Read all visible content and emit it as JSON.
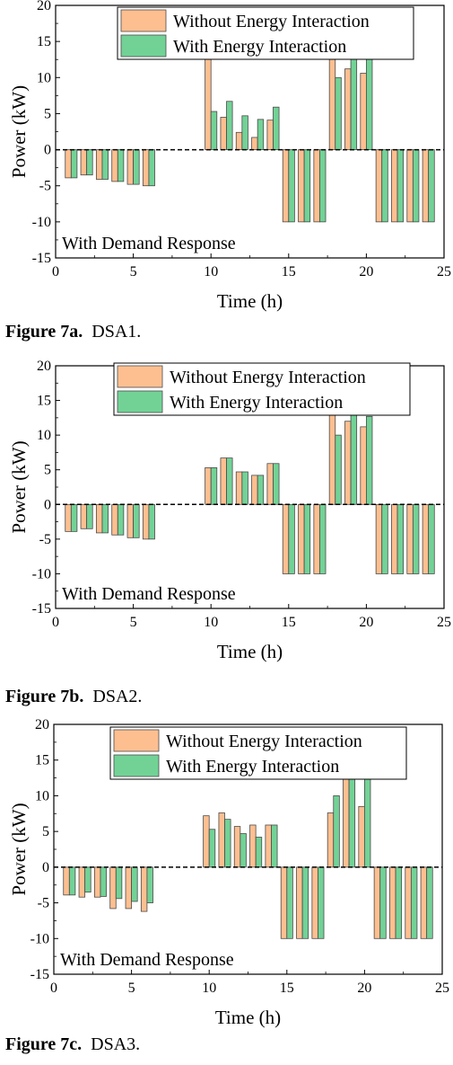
{
  "colors": {
    "without": "#FDBF90",
    "with": "#72D296",
    "bar_stroke": "#4a4a4a"
  },
  "legend": {
    "without": "Without Energy Interaction",
    "with": "With Energy Interaction"
  },
  "axis": {
    "ylabel": "Power (kW)",
    "xlabel": "Time (h)",
    "yticks": [
      "20",
      "15",
      "10",
      "5",
      "0",
      "-5",
      "-10",
      "-15"
    ],
    "xticks": [
      "0",
      "5",
      "10",
      "15",
      "20",
      "25"
    ]
  },
  "annotation": "With Demand Response",
  "chart_data": [
    {
      "type": "bar",
      "caption_label": "Figure 7a.",
      "caption_text": "DSA1.",
      "title": "",
      "xlabel": "Time (h)",
      "ylabel": "Power (kW)",
      "xlim": [
        0,
        25
      ],
      "ylim": [
        -15,
        20
      ],
      "categories": [
        "1",
        "2",
        "3",
        "4",
        "5",
        "6",
        "7",
        "8",
        "9",
        "10",
        "11",
        "12",
        "13",
        "14",
        "15",
        "16",
        "17",
        "18",
        "19",
        "20",
        "21",
        "22",
        "23",
        "24"
      ],
      "series": [
        {
          "name": "Without Energy Interaction",
          "values": [
            -3.9,
            -3.5,
            -4.1,
            -4.4,
            -4.8,
            -5.0,
            0,
            0,
            0,
            14.3,
            4.5,
            2.4,
            1.7,
            4.1,
            -10,
            -10,
            -10,
            14.3,
            11.2,
            10.6,
            -10,
            -10,
            -10,
            -10
          ]
        },
        {
          "name": "With Energy Interaction",
          "values": [
            -3.9,
            -3.5,
            -4.1,
            -4.4,
            -4.8,
            -5.0,
            0,
            0,
            0,
            5.3,
            6.7,
            4.7,
            4.2,
            5.9,
            -10,
            -10,
            -10,
            10.0,
            13.4,
            12.7,
            -10,
            -10,
            -10,
            -10
          ]
        }
      ],
      "grid": false,
      "legend_position": "top-right"
    },
    {
      "type": "bar",
      "caption_label": "Figure 7b.",
      "caption_text": "DSA2.",
      "title": "",
      "xlabel": "Time (h)",
      "ylabel": "Power (kW)",
      "xlim": [
        0,
        25
      ],
      "ylim": [
        -15,
        20
      ],
      "categories": [
        "1",
        "2",
        "3",
        "4",
        "5",
        "6",
        "7",
        "8",
        "9",
        "10",
        "11",
        "12",
        "13",
        "14",
        "15",
        "16",
        "17",
        "18",
        "19",
        "20",
        "21",
        "22",
        "23",
        "24"
      ],
      "series": [
        {
          "name": "Without Energy Interaction",
          "values": [
            -3.9,
            -3.5,
            -4.1,
            -4.4,
            -4.8,
            -5.0,
            0,
            0,
            0,
            5.3,
            6.7,
            4.7,
            4.2,
            5.9,
            -10,
            -10,
            -10,
            13.0,
            12.0,
            11.2,
            -10,
            -10,
            -10,
            -10
          ]
        },
        {
          "name": "With Energy Interaction",
          "values": [
            -3.9,
            -3.5,
            -4.1,
            -4.4,
            -4.8,
            -5.0,
            0,
            0,
            0,
            5.3,
            6.7,
            4.7,
            4.2,
            5.9,
            -10,
            -10,
            -10,
            10.0,
            13.4,
            12.7,
            -10,
            -10,
            -10,
            -10
          ]
        }
      ],
      "grid": false,
      "legend_position": "top-right"
    },
    {
      "type": "bar",
      "caption_label": "Figure 7c.",
      "caption_text": "DSA3.",
      "title": "",
      "xlabel": "Time (h)",
      "ylabel": "Power (kW)",
      "xlim": [
        0,
        25
      ],
      "ylim": [
        -15,
        20
      ],
      "categories": [
        "1",
        "2",
        "3",
        "4",
        "5",
        "6",
        "7",
        "8",
        "9",
        "10",
        "11",
        "12",
        "13",
        "14",
        "15",
        "16",
        "17",
        "18",
        "19",
        "20",
        "21",
        "22",
        "23",
        "24"
      ],
      "series": [
        {
          "name": "Without Energy Interaction",
          "values": [
            -3.9,
            -4.2,
            -4.2,
            -5.8,
            -5.8,
            -6.2,
            0,
            0,
            0,
            7.2,
            7.6,
            5.7,
            5.9,
            5.9,
            -10,
            -10,
            -10,
            7.6,
            14.7,
            8.5,
            -10,
            -10,
            -10,
            -10
          ]
        },
        {
          "name": "With Energy Interaction",
          "values": [
            -3.9,
            -3.5,
            -4.1,
            -4.4,
            -4.8,
            -5.0,
            0,
            0,
            0,
            5.3,
            6.7,
            4.7,
            4.2,
            5.9,
            -10,
            -10,
            -10,
            10.0,
            13.4,
            12.7,
            -10,
            -10,
            -10,
            -10
          ]
        }
      ],
      "grid": false,
      "legend_position": "top-right"
    }
  ]
}
